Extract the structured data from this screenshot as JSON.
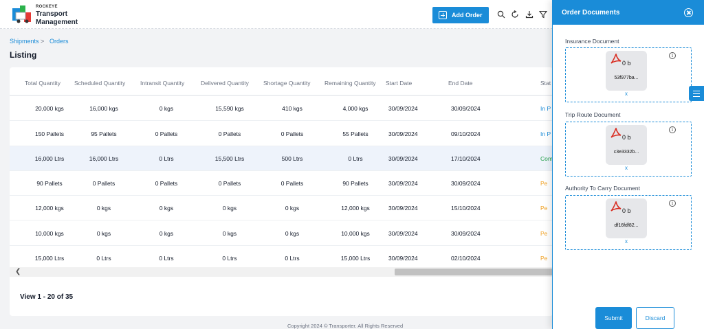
{
  "app": {
    "brand_small": "ROCKEYE",
    "brand_line1": "Transport",
    "brand_line2": "Management"
  },
  "header": {
    "add_order_label": "Add Order",
    "icons": [
      "search-icon",
      "refresh-icon",
      "download-icon",
      "filter-icon"
    ]
  },
  "breadcrumb": [
    "Shipments",
    "Orders"
  ],
  "page_title": "Listing",
  "table": {
    "columns": [
      "Total Quantity",
      "Scheduled Quantity",
      "Intransit Quantity",
      "Delivered Quantity",
      "Shortage Quantity",
      "Remaining Quantity",
      "Start Date",
      "End Date",
      "Stat"
    ],
    "rows": [
      {
        "total": "20,000 kgs",
        "scheduled": "16,000 kgs",
        "intransit": "0 kgs",
        "delivered": "15,590 kgs",
        "shortage": "410 kgs",
        "remaining": "4,000 kgs",
        "start": "30/09/2024",
        "end": "30/09/2024",
        "status": "In P",
        "status_color": "#1a8cd8"
      },
      {
        "total": "150 Pallets",
        "scheduled": "95 Pallets",
        "intransit": "0 Pallets",
        "delivered": "0 Pallets",
        "shortage": "0 Pallets",
        "remaining": "55 Pallets",
        "start": "30/09/2024",
        "end": "09/10/2024",
        "status": "In P",
        "status_color": "#1a8cd8"
      },
      {
        "total": "16,000 Ltrs",
        "scheduled": "16,000 Ltrs",
        "intransit": "0 Ltrs",
        "delivered": "15,500 Ltrs",
        "shortage": "500 Ltrs",
        "remaining": "0 Ltrs",
        "start": "30/09/2024",
        "end": "17/10/2024",
        "status": "Com",
        "status_color": "#22a04b"
      },
      {
        "total": "90 Pallets",
        "scheduled": "0 Pallets",
        "intransit": "0 Pallets",
        "delivered": "0 Pallets",
        "shortage": "0 Pallets",
        "remaining": "90 Pallets",
        "start": "30/09/2024",
        "end": "30/09/2024",
        "status": "Pe",
        "status_color": "#f0a020"
      },
      {
        "total": "12,000 kgs",
        "scheduled": "0 kgs",
        "intransit": "0 kgs",
        "delivered": "0 kgs",
        "shortage": "0 kgs",
        "remaining": "12,000 kgs",
        "start": "30/09/2024",
        "end": "15/10/2024",
        "status": "Pe",
        "status_color": "#f0a020"
      },
      {
        "total": "10,000 kgs",
        "scheduled": "0 kgs",
        "intransit": "0 kgs",
        "delivered": "0 kgs",
        "shortage": "0 kgs",
        "remaining": "10,000 kgs",
        "start": "30/09/2024",
        "end": "30/09/2024",
        "status": "Pe",
        "status_color": "#f0a020"
      },
      {
        "total": "15,000 Ltrs",
        "scheduled": "0 Ltrs",
        "intransit": "0 Ltrs",
        "delivered": "0 Ltrs",
        "shortage": "0 Ltrs",
        "remaining": "15,000 Ltrs",
        "start": "30/09/2024",
        "end": "02/10/2024",
        "status": "Pe",
        "status_color": "#f0a020"
      }
    ]
  },
  "pagination_text": "View 1 - 20 of 35",
  "footer": "Copyright 2024 © Transporter. All Rights Reserved",
  "panel": {
    "title": "Order Documents",
    "documents": [
      {
        "label": "Insurance Document",
        "size": "0 b",
        "file": "53f977ba...",
        "remove": "x"
      },
      {
        "label": "Trip Route Document",
        "size": "0 b",
        "file": "c3e3332b...",
        "remove": "x"
      },
      {
        "label": "Authority To Carry Document",
        "size": "0 b",
        "file": "df16fdf82...",
        "remove": "x"
      }
    ],
    "submit_label": "Submit",
    "discard_label": "Discard"
  },
  "colors": {
    "accent": "#1a8cd8",
    "pdf_red": "#d93025"
  }
}
